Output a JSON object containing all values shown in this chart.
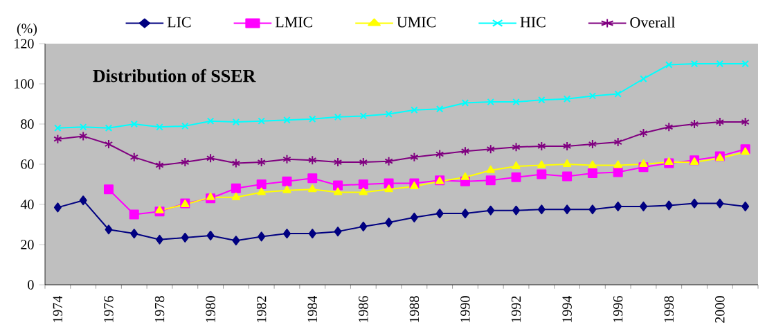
{
  "chart_data": {
    "type": "line",
    "title": "Distribution of  SSER",
    "ylabel": "(%)",
    "categories": [
      "1974",
      null,
      "1976",
      null,
      "1978",
      null,
      "1980",
      null,
      "1982",
      null,
      "1984",
      null,
      "1986",
      null,
      "1988",
      null,
      "1990",
      null,
      "1992",
      null,
      "1994",
      null,
      "1996",
      null,
      "1998",
      null,
      "2000",
      null
    ],
    "series": [
      {
        "name": "LIC",
        "color": "#000080",
        "marker": "diamond",
        "values": [
          38.5,
          42,
          27.5,
          25.5,
          22.5,
          23.5,
          24.5,
          22,
          24,
          25.5,
          25.5,
          26.5,
          29,
          31,
          33.5,
          35.5,
          35.5,
          37,
          37,
          37.5,
          37.5,
          37.5,
          39,
          39,
          39.5,
          40.5,
          40.5,
          39
        ]
      },
      {
        "name": "LMIC",
        "color": "#ff00ff",
        "marker": "square",
        "values": [
          null,
          null,
          47.5,
          35,
          36.5,
          40.5,
          43,
          48,
          50,
          51.5,
          53,
          49.5,
          50,
          50.5,
          50.5,
          52,
          51.5,
          52,
          53.5,
          55,
          54,
          55.5,
          56,
          58.5,
          60.5,
          62,
          64,
          67.5
        ]
      },
      {
        "name": "UMIC",
        "color": "#ffff00",
        "marker": "triangle",
        "values": [
          null,
          null,
          null,
          null,
          37,
          40,
          43.5,
          43.5,
          46,
          47,
          47.5,
          46,
          46,
          47.5,
          49,
          51.5,
          53.5,
          57,
          59,
          59.5,
          60,
          59.5,
          59.5,
          60,
          61,
          61,
          63,
          66
        ]
      },
      {
        "name": "HIC",
        "color": "#00ffff",
        "marker": "cross",
        "values": [
          78,
          78.5,
          78,
          80,
          78.5,
          79,
          81.5,
          81,
          81.5,
          82,
          82.5,
          83.5,
          84,
          85,
          87,
          87.5,
          90.5,
          91,
          91,
          92,
          92.5,
          94,
          95,
          102.5,
          109.5,
          110,
          110,
          110
        ]
      },
      {
        "name": "Overall",
        "color": "#800080",
        "marker": "cross",
        "values": [
          72.5,
          74,
          70,
          63.5,
          59.5,
          61,
          63,
          60.5,
          61,
          62.5,
          62,
          61,
          61,
          61.5,
          63.5,
          65,
          66.5,
          67.5,
          68.5,
          69,
          69,
          70,
          71,
          75.5,
          78.5,
          80,
          81,
          81
        ]
      }
    ],
    "ylim": [
      0,
      120
    ],
    "yticks": [
      0,
      20,
      40,
      60,
      80,
      100,
      120
    ],
    "grid": false,
    "legend": "top",
    "line_style": "solid"
  }
}
